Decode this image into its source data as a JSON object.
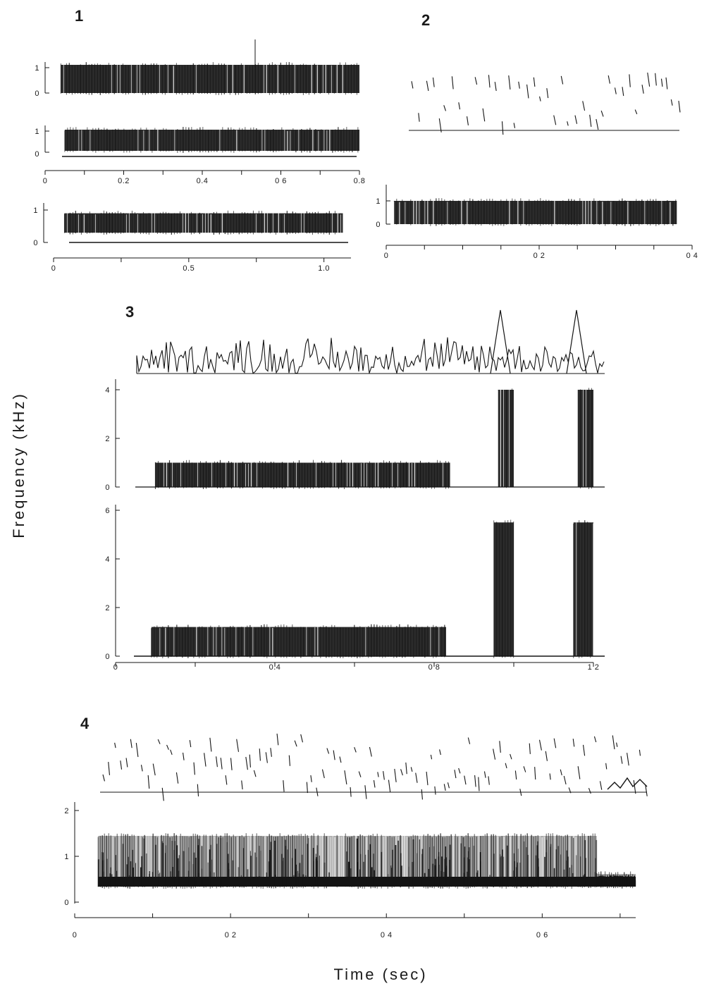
{
  "figure": {
    "ylabel": "Frequency (kHz)",
    "xlabel": "Time (sec)",
    "ink": "#141414"
  },
  "chart_data": [
    {
      "panel": "1",
      "type": "heatmap",
      "title": "",
      "xlabel": "Time (sec)",
      "ylabel": "Frequency (kHz)",
      "xlim": [
        0,
        0.8
      ],
      "x_ticks": [
        "0",
        "0.2",
        "0.4",
        "0 6",
        "0.8"
      ],
      "ylim": [
        0,
        1
      ],
      "y_ticks": [
        "0",
        "1"
      ],
      "bands": [
        {
          "t_start": 0.04,
          "t_end": 0.8,
          "f_low": 0.0,
          "f_high": 1.0
        },
        {
          "t_start": 0.05,
          "t_end": 0.8,
          "f_low": 0.2,
          "f_high": 0.9
        }
      ]
    },
    {
      "panel": "1",
      "type": "heatmap",
      "title": "",
      "xlabel": "Time (sec)",
      "ylabel": "Frequency (kHz)",
      "xlim": [
        0,
        1.1
      ],
      "x_ticks": [
        "0",
        "0.5",
        "1.0"
      ],
      "ylim": [
        0,
        1
      ],
      "y_ticks": [
        "0",
        "1"
      ],
      "bands": [
        {
          "t_start": 0.04,
          "t_end": 1.07,
          "f_low": 0.3,
          "f_high": 0.9
        }
      ]
    },
    {
      "panel": "2",
      "type": "heatmap",
      "title": "",
      "xlabel": "Time (sec)",
      "ylabel": "Frequency (kHz)",
      "xlim": [
        0,
        0.4
      ],
      "x_ticks": [
        "0",
        "0 2",
        "0 4"
      ],
      "ylim": [
        0,
        1
      ],
      "y_ticks": [
        "0",
        "1"
      ],
      "bands": [
        {
          "t_start": 0.01,
          "t_end": 0.38,
          "f_low": 0.0,
          "f_high": 1.0
        }
      ]
    },
    {
      "panel": "3",
      "type": "heatmap",
      "title": "",
      "xlabel": "Time (sec)",
      "ylabel": "Frequency (kHz)",
      "xlim": [
        0,
        1.2
      ],
      "x_ticks": [
        "0",
        "0.4",
        "0 8",
        "1 2"
      ],
      "ylim": [
        0,
        4
      ],
      "y_ticks": [
        "0",
        "2",
        "4"
      ],
      "bands": [
        {
          "t_start": 0.1,
          "t_end": 0.84,
          "f_low": 0.0,
          "f_high": 1.0
        },
        {
          "t_start": 0.96,
          "t_end": 1.0,
          "f_low": 0.0,
          "f_high": 4.0
        },
        {
          "t_start": 1.16,
          "t_end": 1.2,
          "f_low": 0.0,
          "f_high": 4.0
        }
      ]
    },
    {
      "panel": "3",
      "type": "heatmap",
      "title": "",
      "xlabel": "Time (sec)",
      "ylabel": "Frequency (kHz)",
      "xlim": [
        0,
        1.2
      ],
      "x_ticks": [
        "0",
        "0.4",
        "0 8",
        "1 2"
      ],
      "ylim": [
        0,
        6
      ],
      "y_ticks": [
        "0",
        "2",
        "4",
        "6"
      ],
      "bands": [
        {
          "t_start": 0.09,
          "t_end": 0.83,
          "f_low": 0.0,
          "f_high": 1.2
        },
        {
          "t_start": 0.95,
          "t_end": 1.0,
          "f_low": 0.0,
          "f_high": 5.5
        },
        {
          "t_start": 1.15,
          "t_end": 1.2,
          "f_low": 0.0,
          "f_high": 5.5
        }
      ]
    },
    {
      "panel": "4",
      "type": "heatmap",
      "title": "",
      "xlabel": "Time (sec)",
      "ylabel": "Frequency (kHz)",
      "xlim": [
        0,
        0.72
      ],
      "x_ticks": [
        "0",
        "0 2",
        "0 4",
        "0 6"
      ],
      "ylim": [
        0,
        2
      ],
      "y_ticks": [
        "0",
        "1",
        "2"
      ],
      "bands": [
        {
          "t_start": 0.03,
          "t_end": 0.67,
          "f_low": 0.2,
          "f_high": 1.4
        },
        {
          "t_start": 0.67,
          "t_end": 0.72,
          "f_low": 0.2,
          "f_high": 0.5
        }
      ]
    }
  ]
}
